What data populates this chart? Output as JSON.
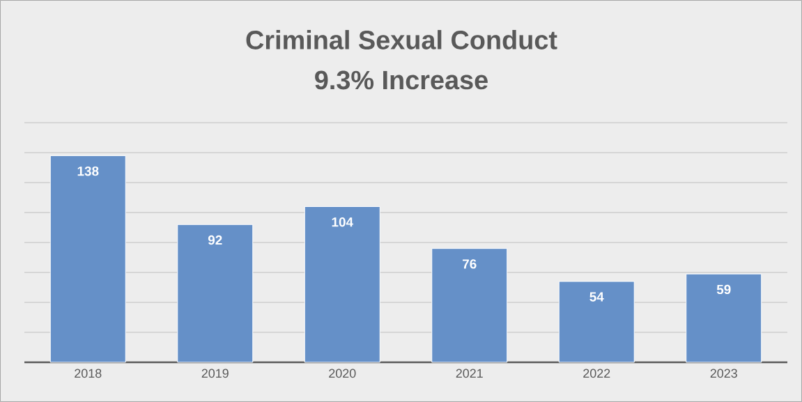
{
  "chart_data": {
    "type": "bar",
    "title": "Criminal Sexual Conduct",
    "subtitle": "9.3% Increase",
    "categories": [
      "2018",
      "2019",
      "2020",
      "2021",
      "2022",
      "2023"
    ],
    "values": [
      138,
      92,
      104,
      76,
      54,
      59
    ],
    "color": "#6590c8",
    "tick_labels": "x",
    "grid": "y",
    "data_labels": true
  }
}
